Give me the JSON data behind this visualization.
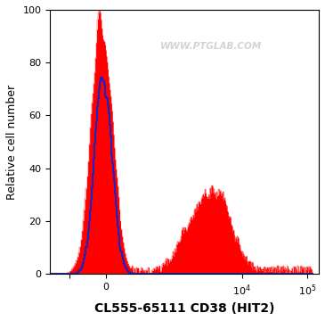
{
  "xlabel": "CL555-65111 CD38 (HIT2)",
  "ylabel": "Relative cell number",
  "ylim": [
    0,
    100
  ],
  "yticks": [
    0,
    20,
    40,
    60,
    80,
    100
  ],
  "watermark": "WWW.PTGLAB.COM",
  "background_color": "#ffffff",
  "plot_bg_color": "#ffffff",
  "blue_line_color": "#2222bb",
  "red_fill_color": "#ff0000",
  "red_edge_color": "#cc0000",
  "linthresh": 300,
  "linscale": 0.5
}
